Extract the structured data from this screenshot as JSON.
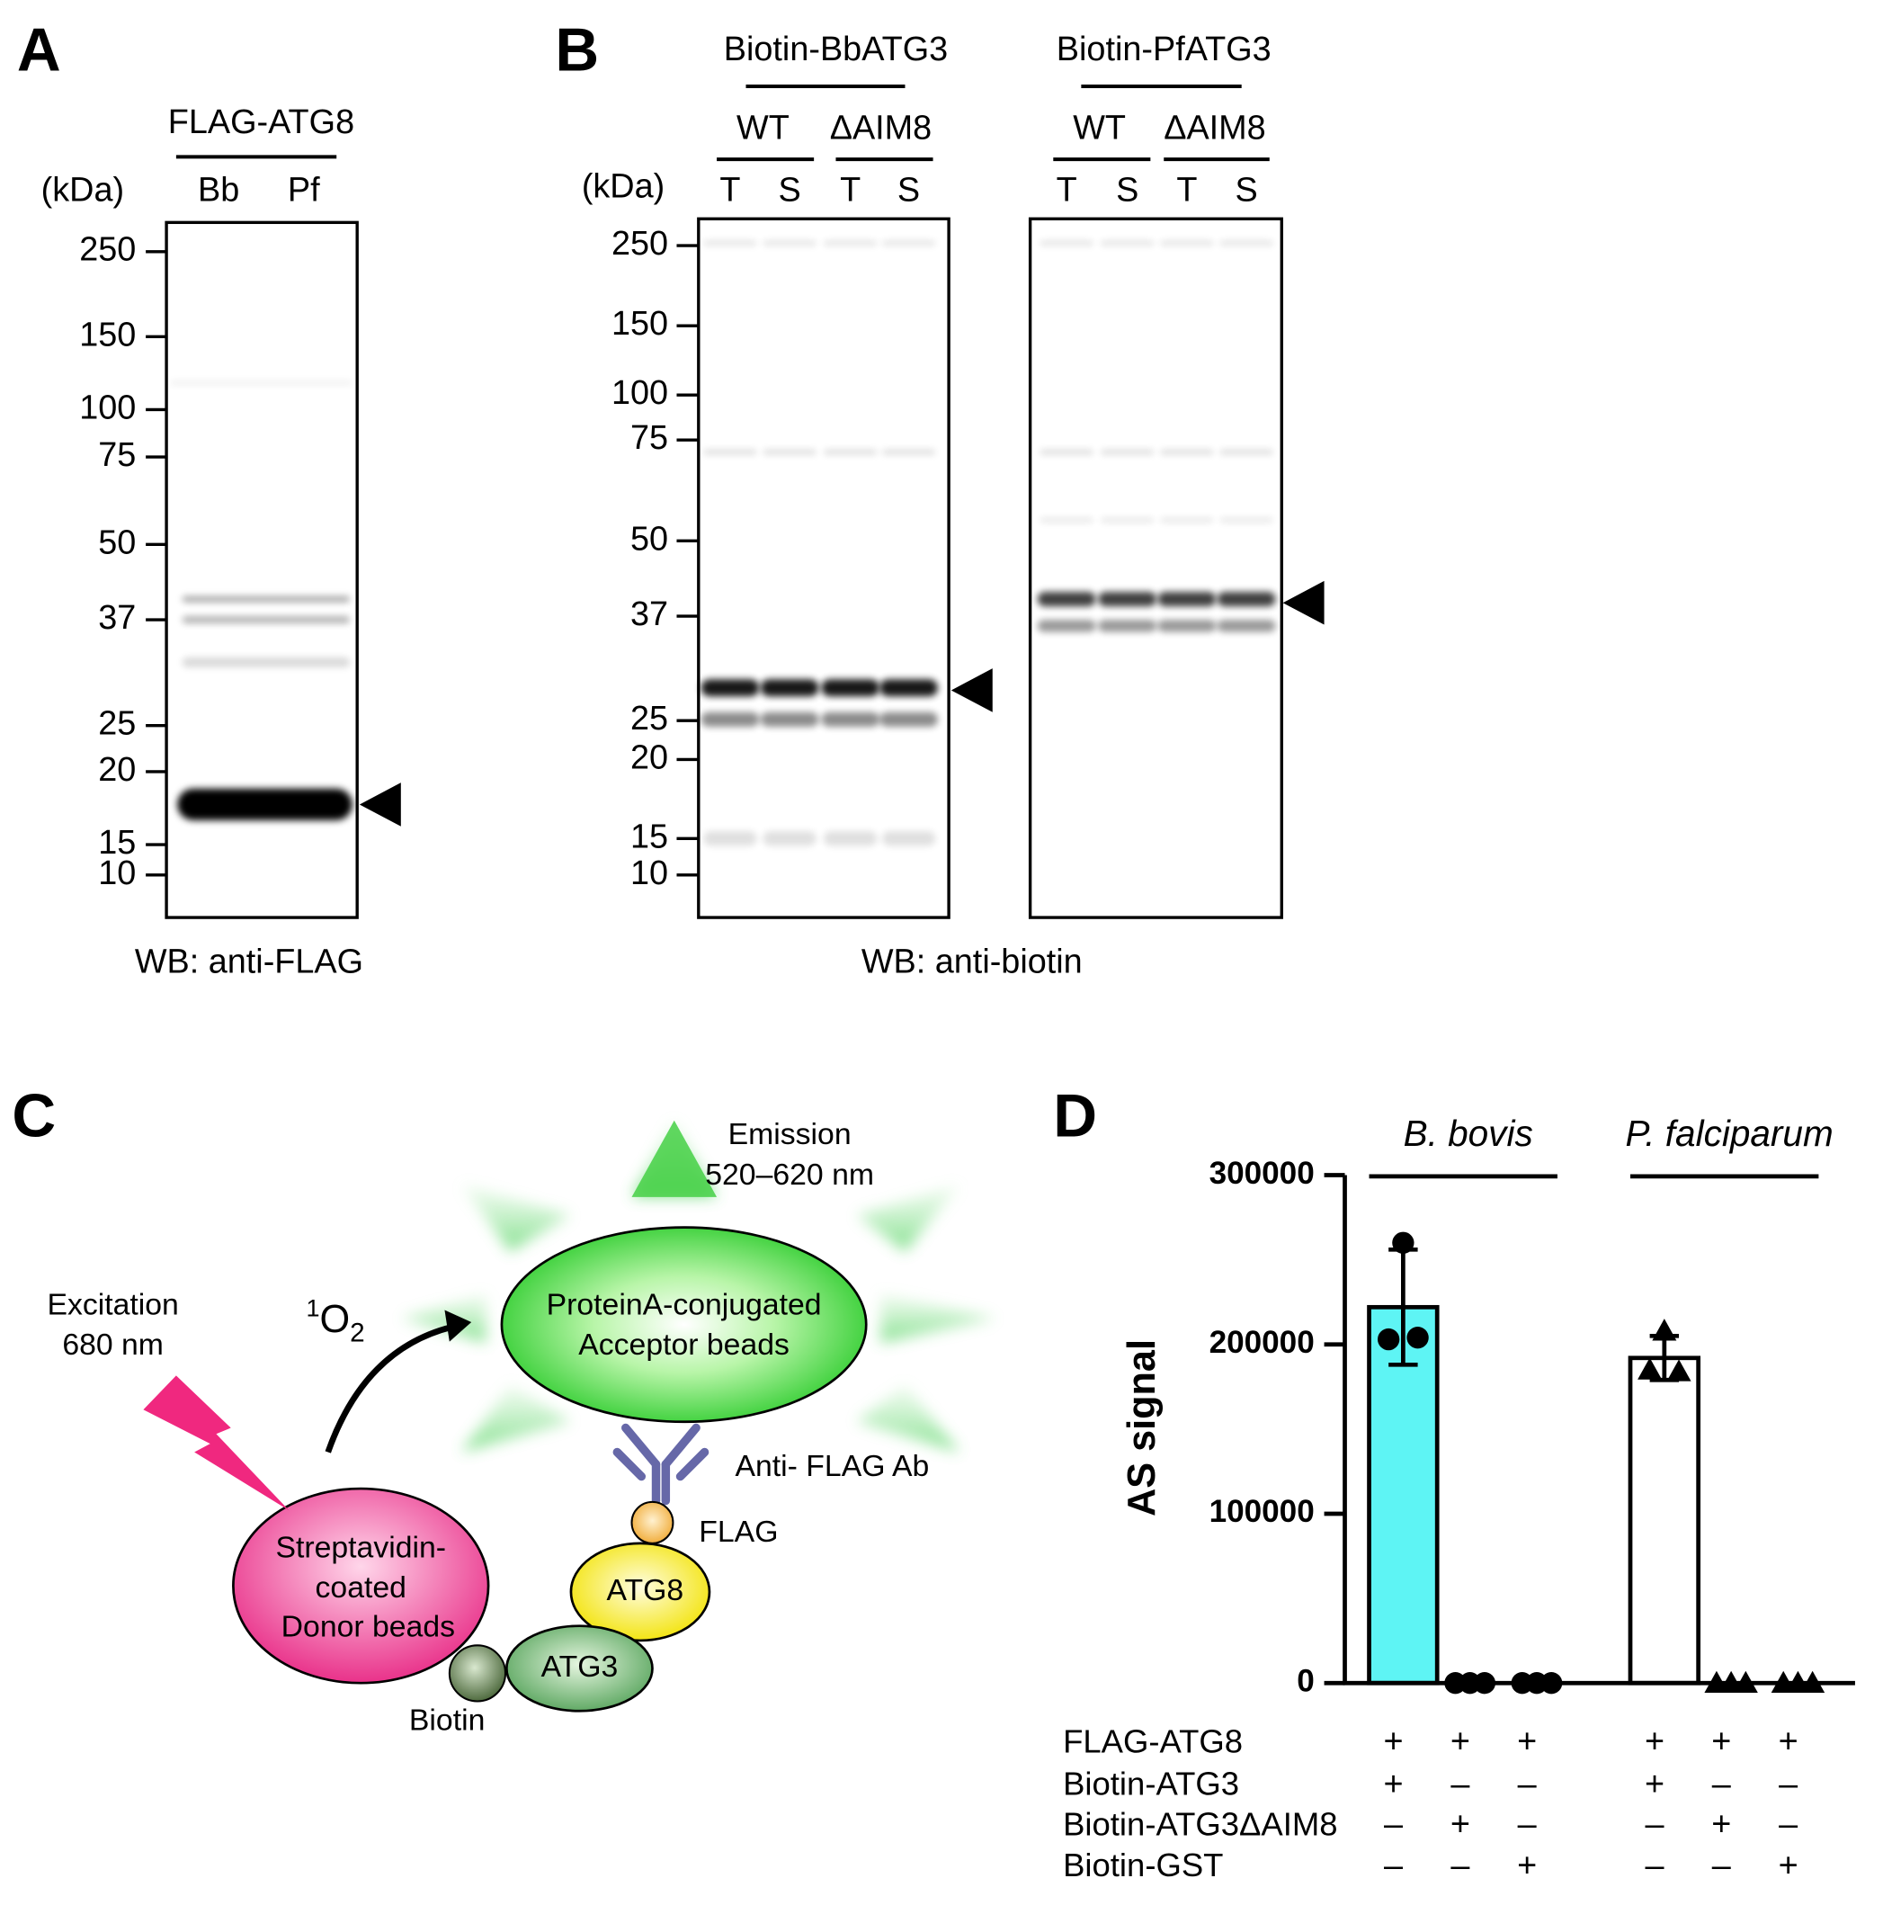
{
  "panel_a": {
    "label": "A",
    "header": "FLAG-ATG8",
    "unit": "(kDa)",
    "lanes": [
      "Bb",
      "Pf"
    ],
    "markers": [
      250,
      150,
      100,
      75,
      50,
      37,
      25,
      20,
      15,
      10
    ],
    "footer": "WB: anti-FLAG"
  },
  "panel_b": {
    "label": "B",
    "unit": "(kDa)",
    "groups": [
      {
        "title": "Biotin-BbATG3",
        "subgroups": [
          "WT",
          "ΔAIM8"
        ],
        "lanes": [
          "T",
          "S",
          "T",
          "S"
        ]
      },
      {
        "title": "Biotin-PfATG3",
        "subgroups": [
          "WT",
          "ΔAIM8"
        ],
        "lanes": [
          "T",
          "S",
          "T",
          "S"
        ]
      }
    ],
    "markers": [
      250,
      150,
      100,
      75,
      50,
      37,
      25,
      20,
      15,
      10
    ],
    "footer": "WB: anti-biotin"
  },
  "panel_c": {
    "label": "C",
    "excitation": [
      "Excitation",
      "680 nm"
    ],
    "singlet_oxygen": {
      "sup": "1",
      "base": "O",
      "sub": "2"
    },
    "emission": [
      "Emission",
      "520–620 nm"
    ],
    "acceptor": [
      "ProteinA-conjugated",
      "Acceptor beads"
    ],
    "antibody": "Anti- FLAG Ab",
    "flag": "FLAG",
    "atg8": "ATG8",
    "atg3": "ATG3",
    "biotin": "Biotin",
    "donor": [
      "Streptavidin-",
      "coated",
      "Donor beads"
    ]
  },
  "chart_data": {
    "type": "bar",
    "label": "D",
    "ylabel": "AS signal",
    "groups": [
      "B. bovis",
      "P. falciparum"
    ],
    "categories": [
      null,
      null,
      null,
      null,
      null,
      null
    ],
    "values": [
      222000,
      0,
      0,
      192000,
      0,
      0
    ],
    "errors": [
      34000,
      0,
      0,
      13000,
      0,
      0
    ],
    "points": [
      [
        203000,
        260000,
        204000
      ],
      [
        0,
        0,
        0
      ],
      [
        0,
        0,
        0
      ],
      [
        185000,
        208000,
        184000
      ],
      [
        0,
        0,
        0
      ],
      [
        0,
        0,
        0
      ]
    ],
    "colors": [
      "#5ef4f4",
      "#5ef4f4",
      "#5ef4f4",
      "#ffffff",
      "#ffffff",
      "#ffffff"
    ],
    "markers": [
      "circle",
      "circle",
      "circle",
      "triangle",
      "triangle",
      "triangle"
    ],
    "ylim": [
      0,
      300000
    ],
    "yticks": [
      0,
      100000,
      200000,
      300000
    ],
    "conditions": [
      {
        "label": "FLAG-ATG8",
        "signs": [
          "+",
          "+",
          "+",
          "+",
          "+",
          "+"
        ]
      },
      {
        "label": "Biotin-ATG3",
        "signs": [
          "+",
          "–",
          "–",
          "+",
          "–",
          "–"
        ]
      },
      {
        "label": "Biotin-ATG3ΔAIM8",
        "signs": [
          "–",
          "+",
          "–",
          "–",
          "+",
          "–"
        ]
      },
      {
        "label": "Biotin-GST",
        "signs": [
          "–",
          "–",
          "+",
          "–",
          "–",
          "+"
        ]
      }
    ]
  }
}
